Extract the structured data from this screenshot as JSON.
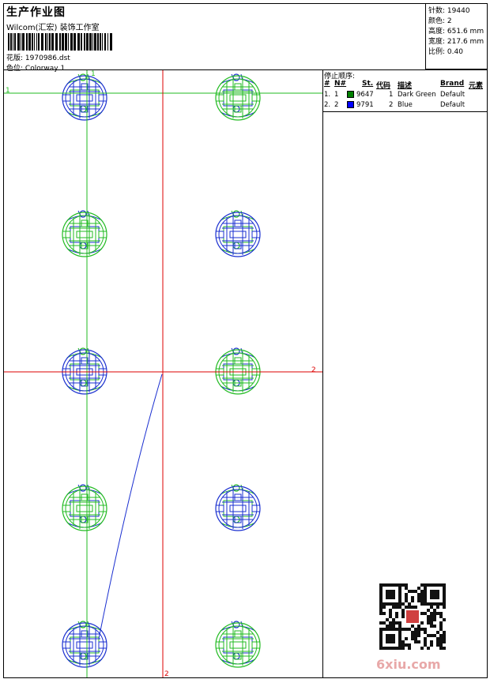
{
  "header": {
    "title": "生产作业图",
    "company": "Wilcom(汇宏) 装饰工作室",
    "design_label": "花版:",
    "design_file": "1970986.dst",
    "colorway_label": "色位:",
    "colorway": "Colorway 1"
  },
  "stats": {
    "stitches_label": "针数:",
    "stitches": "19440",
    "colors_label": "颜色:",
    "colors": "2",
    "height_label": "高度:",
    "height": "651.6 mm",
    "width_label": "宽度:",
    "width": "217.6 mm",
    "scale_label": "比例:",
    "scale": "0.40"
  },
  "stop_sequence": {
    "title": "停止顺序:",
    "columns": [
      "#",
      "N#",
      "St.",
      "代码",
      "描述",
      "Brand",
      "元素"
    ],
    "rows": [
      {
        "idx": "1.",
        "n": "1",
        "color": "#008000",
        "st": "9647",
        "code": "1",
        "desc": "Dark Green",
        "brand": "Default"
      },
      {
        "idx": "2.",
        "n": "2",
        "color": "#0000ff",
        "st": "9791",
        "code": "2",
        "desc": "Blue",
        "brand": "Default"
      }
    ]
  },
  "canvas": {
    "guide_labels": {
      "green_v": "1",
      "green_h": "1",
      "red_h": "2",
      "red_v": "2"
    },
    "colors": {
      "green": "#22bb22",
      "blue": "#1a2fd0",
      "red": "#dd0000"
    },
    "motifs": [
      {
        "dominant": "blue"
      },
      {
        "dominant": "green"
      },
      {
        "dominant": "green"
      },
      {
        "dominant": "blue"
      },
      {
        "dominant": "blue"
      },
      {
        "dominant": "green"
      },
      {
        "dominant": "green"
      },
      {
        "dominant": "blue"
      },
      {
        "dominant": "blue"
      },
      {
        "dominant": "green"
      }
    ]
  },
  "footer": {
    "watermark": "6xiu.com",
    "qr_icon": "qr-code-icon"
  }
}
